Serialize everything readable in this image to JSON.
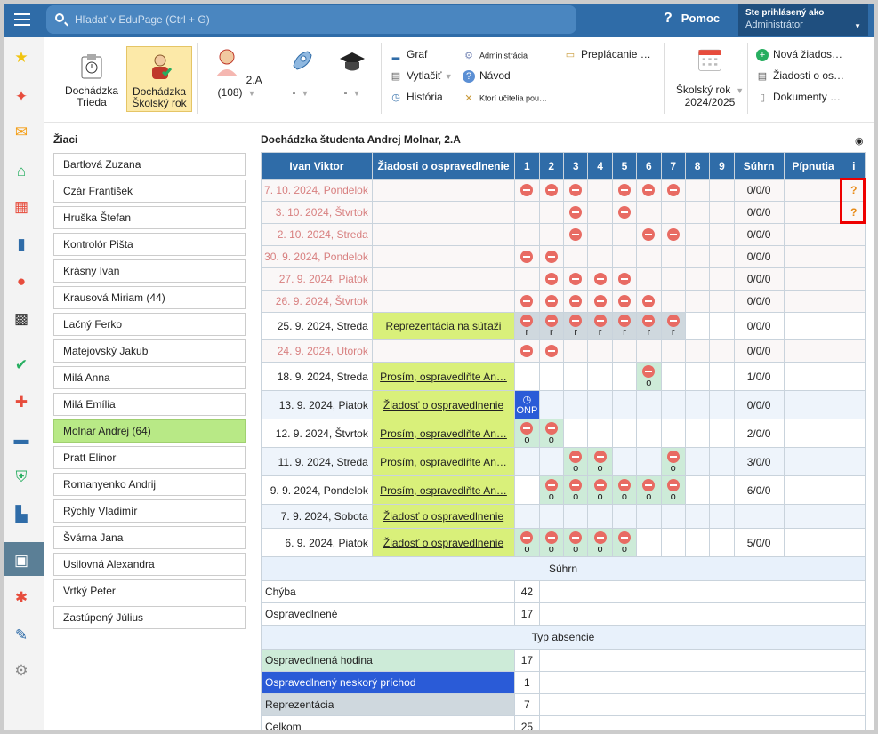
{
  "topbar": {
    "search_placeholder": "Hľadať v EduPage (Ctrl + G)",
    "help_label": "Pomoc",
    "user_line1": "Ste prihlásený ako",
    "user_line2": "Administrátor"
  },
  "toolbar": {
    "big1_line1": "Dochádzka",
    "big1_line2": "Trieda",
    "big2_line1": "Dochádzka",
    "big2_line2": "Školský rok",
    "class_sel": "2.A (108)",
    "sel2": "-",
    "sel3": "-",
    "graf": "Graf",
    "vytlacit": "Vytlačiť",
    "historia": "História",
    "administracia": "Administrácia",
    "navod": "Návod",
    "ktori": "Ktorí učitelia pou…",
    "preplacanie": "Preplácanie …",
    "skolsky_rok_line1": "Školský rok",
    "skolsky_rok_line2": "2024/2025",
    "nova": "Nová žiados…",
    "ziadosti": "Žiadosti o os…",
    "dokumenty": "Dokumenty …"
  },
  "students": {
    "title": "Žiaci",
    "list": [
      "Bartlová Zuzana",
      "Czár František",
      "Hruška Štefan",
      "Kontrolór Pišta",
      "Krásny Ivan",
      "Krausová Miriam (44)",
      "Lačný Ferko",
      "Matejovský Jakub",
      "Milá Anna",
      "Milá Emília",
      "Molnar Andrej (64)",
      "Pratt Elinor",
      "Romanyenko Andrij",
      "Rýchly Vladimír",
      "Švárna Jana",
      "Usilovná Alexandra",
      "Vrtký Peter",
      "Zastúpený Július"
    ],
    "selected": "Molnar Andrej (64)"
  },
  "main": {
    "title": "Dochádzka študenta Andrej Molnar, 2.A",
    "headers": [
      "Ivan Viktor",
      "Žiadosti o ospravedlnenie",
      "1",
      "2",
      "3",
      "4",
      "5",
      "6",
      "7",
      "8",
      "9",
      "Súhrn",
      "Pípnutia",
      "i"
    ],
    "rows": [
      {
        "date": "7. 10. 2024, Pondelok",
        "style": "pink",
        "req": "",
        "cells": [
          "a",
          "a",
          "a",
          "",
          "a",
          "a",
          "a",
          "",
          ""
        ],
        "marks": [
          "",
          "",
          "",
          "",
          "",
          "",
          "",
          "",
          ""
        ],
        "sum": "0/0/0",
        "info": "?"
      },
      {
        "date": "3. 10. 2024, Štvrtok",
        "style": "pinkalt",
        "req": "",
        "cells": [
          "",
          "",
          "a",
          "",
          "a",
          "",
          "",
          "",
          ""
        ],
        "marks": [
          "",
          "",
          "",
          "",
          "",
          "",
          "",
          "",
          ""
        ],
        "sum": "0/0/0",
        "info": "?"
      },
      {
        "date": "2. 10. 2024, Streda",
        "style": "pink",
        "req": "",
        "cells": [
          "",
          "",
          "a",
          "",
          "",
          "a",
          "a",
          "",
          ""
        ],
        "marks": [
          "",
          "",
          "",
          "",
          "",
          "",
          "",
          "",
          ""
        ],
        "sum": "0/0/0",
        "info": ""
      },
      {
        "date": "30. 9. 2024, Pondelok",
        "style": "pinkalt",
        "req": "",
        "cells": [
          "a",
          "a",
          "",
          "",
          "",
          "",
          "",
          "",
          ""
        ],
        "marks": [
          "",
          "",
          "",
          "",
          "",
          "",
          "",
          "",
          ""
        ],
        "sum": "0/0/0",
        "info": ""
      },
      {
        "date": "27. 9. 2024, Piatok",
        "style": "pink",
        "req": "",
        "cells": [
          "",
          "a",
          "a",
          "a",
          "a",
          "",
          "",
          "",
          ""
        ],
        "marks": [
          "",
          "",
          "",
          "",
          "",
          "",
          "",
          "",
          ""
        ],
        "sum": "0/0/0",
        "info": ""
      },
      {
        "date": "26. 9. 2024, Štvrtok",
        "style": "pinkalt",
        "req": "",
        "cells": [
          "a",
          "a",
          "a",
          "a",
          "a",
          "a",
          "",
          "",
          ""
        ],
        "marks": [
          "",
          "",
          "",
          "",
          "",
          "",
          "",
          "",
          ""
        ],
        "sum": "0/0/0",
        "info": ""
      },
      {
        "date": "25. 9. 2024, Streda",
        "style": "",
        "req": "Reprezentácia na súťaži",
        "cells": [
          "r",
          "r",
          "r",
          "r",
          "r",
          "r",
          "r",
          "",
          ""
        ],
        "marks": [
          "r",
          "r",
          "r",
          "r",
          "r",
          "r",
          "r",
          "",
          ""
        ],
        "sum": "0/0/0",
        "info": ""
      },
      {
        "date": "24. 9. 2024, Utorok",
        "style": "pinkalt",
        "req": "",
        "cells": [
          "a",
          "a",
          "",
          "",
          "",
          "",
          "",
          "",
          ""
        ],
        "marks": [
          "",
          "",
          "",
          "",
          "",
          "",
          "",
          "",
          ""
        ],
        "sum": "0/0/0",
        "info": ""
      },
      {
        "date": "18. 9. 2024, Streda",
        "style": "",
        "req": "Prosím, ospravedlňte An…",
        "cells": [
          "",
          "",
          "",
          "",
          "",
          "o",
          "",
          "",
          ""
        ],
        "marks": [
          "",
          "",
          "",
          "",
          "",
          "o",
          "",
          "",
          ""
        ],
        "sum": "1/0/0",
        "info": ""
      },
      {
        "date": "13. 9. 2024, Piatok",
        "style": "alt",
        "req": "Žiadosť o ospravedlnenie",
        "cells": [
          "onp",
          "",
          "",
          "",
          "",
          "",
          "",
          "",
          ""
        ],
        "marks": [
          "ONP",
          "",
          "",
          "",
          "",
          "",
          "",
          "",
          ""
        ],
        "sum": "0/0/0",
        "info": ""
      },
      {
        "date": "12. 9. 2024, Štvrtok",
        "style": "",
        "req": "Prosím, ospravedlňte An…",
        "cells": [
          "o",
          "o",
          "",
          "",
          "",
          "",
          "",
          "",
          ""
        ],
        "marks": [
          "o",
          "o",
          "",
          "",
          "",
          "",
          "",
          "",
          ""
        ],
        "sum": "2/0/0",
        "info": ""
      },
      {
        "date": "11. 9. 2024, Streda",
        "style": "alt",
        "req": "Prosím, ospravedlňte An…",
        "cells": [
          "",
          "",
          "o",
          "o",
          "",
          "",
          "o",
          "",
          ""
        ],
        "marks": [
          "",
          "",
          "o",
          "o",
          "",
          "",
          "o",
          "",
          ""
        ],
        "sum": "3/0/0",
        "info": ""
      },
      {
        "date": "9. 9. 2024, Pondelok",
        "style": "",
        "req": "Prosím, ospravedlňte An…",
        "cells": [
          "",
          "o",
          "o",
          "o",
          "o",
          "o",
          "o",
          "",
          ""
        ],
        "marks": [
          "",
          "o",
          "o",
          "o",
          "o",
          "o",
          "o",
          "",
          ""
        ],
        "sum": "6/0/0",
        "info": ""
      },
      {
        "date": "7. 9. 2024, Sobota",
        "style": "alt",
        "req": "Žiadosť o ospravedlnenie",
        "cells": [
          "",
          "",
          "",
          "",
          "",
          "",
          "",
          "",
          ""
        ],
        "marks": [
          "",
          "",
          "",
          "",
          "",
          "",
          "",
          "",
          ""
        ],
        "sum": "",
        "info": ""
      },
      {
        "date": "6. 9. 2024, Piatok",
        "style": "",
        "req": "Žiadosť o ospravedlnenie",
        "cells": [
          "o",
          "o",
          "o",
          "o",
          "o",
          "",
          "",
          "",
          ""
        ],
        "marks": [
          "o",
          "o",
          "o",
          "o",
          "o",
          "",
          "",
          "",
          ""
        ],
        "sum": "5/0/0",
        "info": ""
      }
    ],
    "summary_title": "Súhrn",
    "summary": [
      {
        "label": "Chýba",
        "value": "42"
      },
      {
        "label": "Ospravedlnené",
        "value": "17"
      }
    ],
    "types_title": "Typ absencie",
    "types": [
      {
        "label": "Ospravedlnená hodina",
        "value": "17",
        "cls": "lbl-o"
      },
      {
        "label": "Ospravedlnený neskorý príchod",
        "value": "1",
        "cls": "lbl-blue"
      },
      {
        "label": "Reprezentácia",
        "value": "7",
        "cls": "lbl-grey"
      },
      {
        "label": "Celkom",
        "value": "25",
        "cls": ""
      }
    ]
  },
  "colors": {
    "topbar": "#2f6ca8",
    "selected_student": "#b8e986",
    "request": "#d9f07a",
    "absence": "#e86b63",
    "excused": "#cdebd8",
    "late": "#2a5bd7"
  }
}
